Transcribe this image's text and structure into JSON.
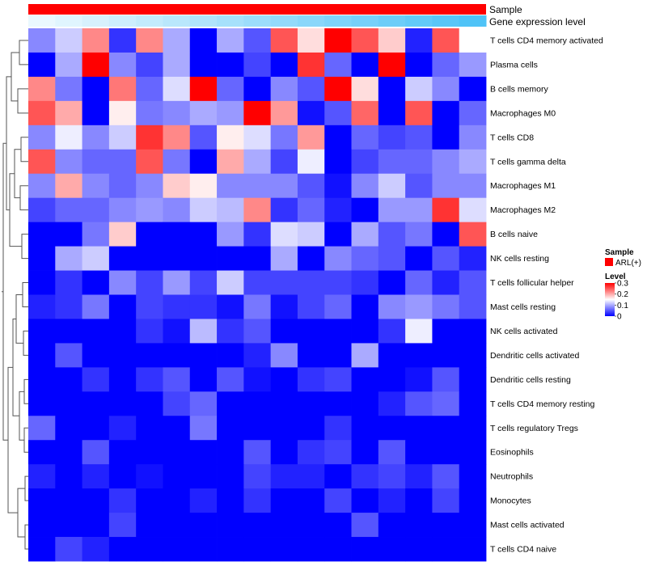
{
  "chart_data": {
    "type": "heatmap",
    "title": "",
    "annotation_tracks": [
      {
        "label": "Sample",
        "color": "#FF0000",
        "kind": "constant"
      },
      {
        "label": "Gene expression level",
        "kind": "gradient",
        "from": "#FFFFFF",
        "to": "#4FC3F7"
      }
    ],
    "rows": [
      "T cells CD4 memory activated",
      "Plasma cells",
      "B cells memory",
      "Macrophages M0",
      "T cells CD8",
      "T cells gamma delta",
      "Macrophages M1",
      "Macrophages M2",
      "B cells naive",
      "NK cells resting",
      "T cells follicular helper",
      "Mast cells resting",
      "NK cells activated",
      "Dendritic cells activated",
      "Dendritic cells resting",
      "T cells CD4 memory resting",
      "T cells regulatory  Tregs",
      "Eosinophils",
      "Neutrophils",
      "Monocytes",
      "Mast cells activated",
      "T cells CD4 naive"
    ],
    "n_columns": 17,
    "values": [
      [
        0.08,
        0.12,
        0.22,
        0.03,
        0.22,
        0.1,
        0.0,
        0.1,
        0.05,
        0.25,
        0.17,
        0.3,
        0.25,
        0.18,
        0.02,
        0.25,
        0.15
      ],
      [
        0.0,
        0.1,
        0.3,
        0.08,
        0.04,
        0.1,
        0.0,
        0.0,
        0.04,
        0.0,
        0.27,
        0.06,
        0.0,
        0.3,
        0.0,
        0.06,
        0.09
      ],
      [
        0.22,
        0.07,
        0.0,
        0.23,
        0.06,
        0.13,
        0.3,
        0.06,
        0.0,
        0.08,
        0.05,
        0.3,
        0.17,
        0.0,
        0.12,
        0.08,
        0.0
      ],
      [
        0.25,
        0.2,
        0.0,
        0.16,
        0.07,
        0.08,
        0.1,
        0.09,
        0.3,
        0.21,
        0.01,
        0.05,
        0.24,
        0.0,
        0.25,
        0.0,
        0.06
      ],
      [
        0.08,
        0.14,
        0.08,
        0.12,
        0.27,
        0.22,
        0.05,
        0.16,
        0.13,
        0.07,
        0.21,
        0.0,
        0.06,
        0.04,
        0.05,
        0.0,
        0.08
      ],
      [
        0.25,
        0.08,
        0.06,
        0.06,
        0.25,
        0.07,
        0.0,
        0.2,
        0.1,
        0.04,
        0.14,
        0.0,
        0.04,
        0.06,
        0.06,
        0.08,
        0.1
      ],
      [
        0.08,
        0.2,
        0.08,
        0.06,
        0.08,
        0.18,
        0.16,
        0.08,
        0.08,
        0.08,
        0.05,
        0.01,
        0.08,
        0.12,
        0.05,
        0.08,
        0.08
      ],
      [
        0.04,
        0.06,
        0.06,
        0.08,
        0.09,
        0.08,
        0.12,
        0.11,
        0.22,
        0.03,
        0.06,
        0.02,
        0.0,
        0.09,
        0.09,
        0.27,
        0.13
      ],
      [
        0.0,
        0.0,
        0.07,
        0.18,
        0.0,
        0.0,
        0.0,
        0.09,
        0.03,
        0.13,
        0.12,
        0.0,
        0.1,
        0.05,
        0.07,
        0.0,
        0.25
      ],
      [
        0.0,
        0.1,
        0.12,
        0.0,
        0.0,
        0.0,
        0.0,
        0.0,
        0.0,
        0.1,
        0.0,
        0.08,
        0.06,
        0.05,
        0.0,
        0.05,
        0.02
      ],
      [
        0.0,
        0.03,
        0.0,
        0.08,
        0.04,
        0.09,
        0.04,
        0.12,
        0.04,
        0.04,
        0.04,
        0.04,
        0.03,
        0.0,
        0.06,
        0.02,
        0.05
      ],
      [
        0.02,
        0.03,
        0.07,
        0.0,
        0.04,
        0.03,
        0.03,
        0.01,
        0.07,
        0.01,
        0.04,
        0.06,
        0.0,
        0.08,
        0.09,
        0.07,
        0.05
      ],
      [
        0.0,
        0.0,
        0.0,
        0.0,
        0.03,
        0.01,
        0.11,
        0.03,
        0.05,
        0.0,
        0.0,
        0.0,
        0.0,
        0.03,
        0.14,
        0.0,
        0.0
      ],
      [
        0.0,
        0.05,
        0.0,
        0.0,
        0.0,
        0.0,
        0.0,
        0.0,
        0.02,
        0.08,
        0.0,
        0.0,
        0.1,
        0.0,
        0.0,
        0.0,
        0.0
      ],
      [
        0.0,
        0.0,
        0.03,
        0.0,
        0.03,
        0.05,
        0.0,
        0.05,
        0.01,
        0.0,
        0.03,
        0.04,
        0.0,
        0.0,
        0.01,
        0.05,
        0.0
      ],
      [
        0.0,
        0.0,
        0.0,
        0.0,
        0.0,
        0.04,
        0.06,
        0.0,
        0.0,
        0.0,
        0.0,
        0.0,
        0.0,
        0.02,
        0.05,
        0.06,
        0.0
      ],
      [
        0.06,
        0.0,
        0.0,
        0.02,
        0.0,
        0.0,
        0.07,
        0.0,
        0.0,
        0.0,
        0.0,
        0.03,
        0.0,
        0.0,
        0.0,
        0.0,
        0.0
      ],
      [
        0.0,
        0.0,
        0.05,
        0.0,
        0.0,
        0.0,
        0.0,
        0.0,
        0.05,
        0.0,
        0.03,
        0.04,
        0.0,
        0.05,
        0.0,
        0.0,
        0.0
      ],
      [
        0.02,
        0.0,
        0.02,
        0.0,
        0.01,
        0.0,
        0.0,
        0.0,
        0.04,
        0.02,
        0.02,
        0.0,
        0.03,
        0.04,
        0.02,
        0.05,
        0.0
      ],
      [
        0.0,
        0.0,
        0.0,
        0.03,
        0.0,
        0.0,
        0.02,
        0.0,
        0.03,
        0.0,
        0.0,
        0.04,
        0.0,
        0.02,
        0.0,
        0.04,
        0.0
      ],
      [
        0.0,
        0.0,
        0.0,
        0.04,
        0.0,
        0.0,
        0.0,
        0.0,
        0.0,
        0.0,
        0.0,
        0.0,
        0.05,
        0.0,
        0.0,
        0.0,
        0.0
      ],
      [
        0.0,
        0.04,
        0.02,
        0.0,
        0.0,
        0.0,
        0.0,
        0.0,
        0.0,
        0.0,
        0.0,
        0.0,
        0.0,
        0.0,
        0.0,
        0.0,
        0.0
      ]
    ],
    "scale": {
      "min": 0,
      "mid": 0.15,
      "max": 0.3,
      "low_color": "#0000FF",
      "mid_color": "#FFFFFF",
      "high_color": "#FF0000"
    },
    "legend": {
      "position": "right",
      "sample_title": "Sample",
      "sample_entry": "ARL(+)",
      "sample_color": "#FF0000",
      "level_title": "Level",
      "level_ticks": [
        {
          "value": 0.3,
          "label": "0.3"
        },
        {
          "value": 0.2,
          "label": "0.2"
        },
        {
          "value": 0.1,
          "label": "0.1"
        },
        {
          "value": 0,
          "label": "0"
        }
      ]
    },
    "dendrogram": "rows"
  }
}
